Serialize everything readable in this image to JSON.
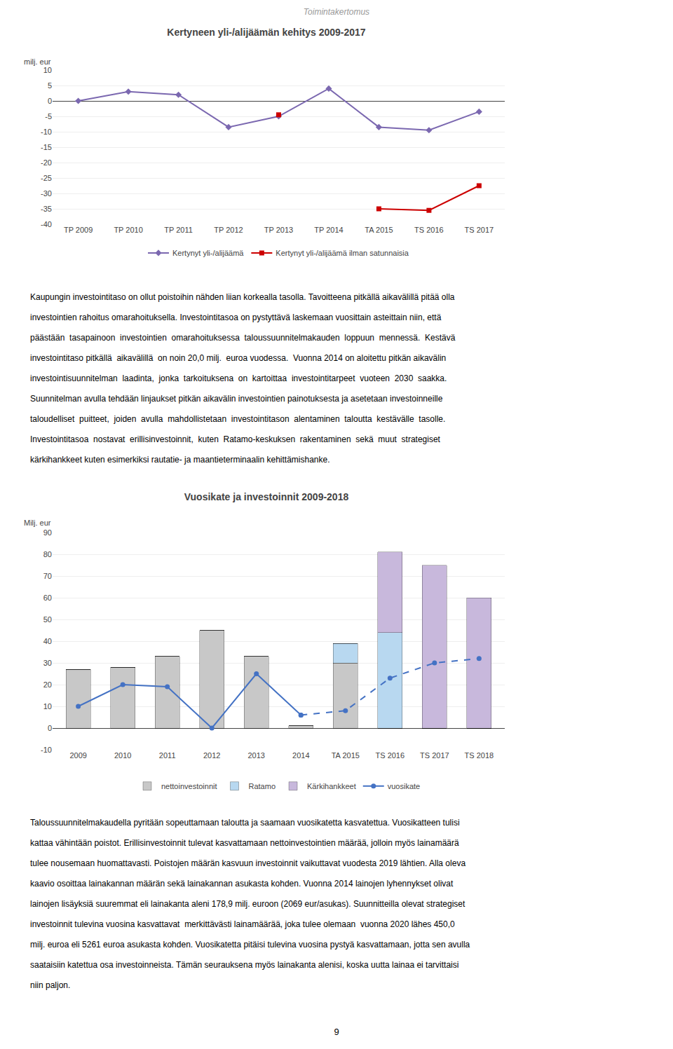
{
  "title": "Toimintakertomus",
  "page_number": "9",
  "text_blocks": [
    [
      "Kaupungin investointitaso on ollut poistoihin nähden liian korkealla tasolla. Tavoitteena pitkällä aikavälillä pitää olla",
      "investointien rahoitus omarahoituksella. Investointitasoa on pystyttävä laskemaan vuosittain asteittain niin, että",
      "päästään  tasapainoon  investointien  omarahoituksessa  taloussuunnitelmakauden  loppuun  mennessä.  Kestävä",
      "investointitaso pitkällä  aikavälillä  on noin 20,0 milj.  euroa vuodessa.  Vuonna 2014 on aloitettu pitkän aikavälin",
      "investointisuunnitelman  laadinta,  jonka  tarkoituksena  on  kartoittaa  investointitarpeet  vuoteen  2030  saakka.",
      "Suunnitelman avulla tehdään linjaukset pitkän aikavälin investointien painotuksesta ja asetetaan investoinneille",
      "taloudelliset  puitteet,  joiden  avulla  mahdollistetaan  investointitason  alentaminen  taloutta  kestävälle  tasolle.",
      "Investointitasoa  nostavat  erillisinvestoinnit,  kuten  Ratamo-keskuksen  rakentaminen  sekä  muut  strategiset",
      "kärkihankkeet kuten esimerkiksi rautatie- ja maantieterminaalin kehittämishanke."
    ],
    [
      "Taloussuunnitelmakaudella pyritään sopeuttamaan taloutta ja saamaan vuosikatetta kasvatettua. Vuosikatteen tulisi",
      "kattaa vähintään poistot. Erillisinvestoinnit tulevat kasvattamaan nettoinvestointien määrää, jolloin myös lainamäärä",
      "tulee nousemaan huomattavasti. Poistojen määrän kasvuun investoinnit vaikuttavat vuodesta 2019 lähtien. Alla oleva",
      "kaavio osoittaa lainakannan määrän sekä lainakannan asukasta kohden. Vuonna 2014 lainojen lyhennykset olivat",
      "lainojen lisäyksiä suuremmat eli lainakanta aleni 178,9 milj. euroon (2069 eur/asukas). Suunnitteilla olevat strategiset",
      "investoinnit tulevina vuosina kasvattavat  merkittävästi lainamäärää, joka tulee olemaan  vuonna 2020 lähes 450,0",
      "milj. euroa eli 5261 euroa asukasta kohden. Vuosikatetta pitäisi tulevina vuosina pystyä kasvattamaan, jotta sen avulla",
      "saataisiin katettua osa investoinneista. Tämän seurauksena myös lainakanta alenisi, koska uutta lainaa ei tarvittaisi",
      "niin paljon."
    ]
  ],
  "chart_data": [
    {
      "type": "line",
      "title": "Kertyneen yli-/alijäämän kehitys 2009-2017",
      "ylabel": "milj. eur",
      "categories": [
        "TP 2009",
        "TP 2010",
        "TP 2011",
        "TP 2012",
        "TP 2013",
        "TP 2014",
        "TA 2015",
        "TS 2016",
        "TS 2017"
      ],
      "series": [
        {
          "name": "Kertynyt yli-/alijäämä",
          "color": "#7B68B0",
          "marker": "diamond",
          "values": [
            0.0,
            3.0,
            2.0,
            -8.5,
            -5.0,
            4.0,
            -8.5,
            -9.5,
            -3.5
          ]
        },
        {
          "name": "Kertynyt yli-/alijäämä ilman satunnaisia",
          "color": "#CC0000",
          "marker": "square",
          "values": [
            null,
            null,
            null,
            null,
            -4.5,
            null,
            -35.0,
            -35.5,
            -27.5
          ]
        }
      ],
      "ylim": [
        -40,
        10
      ],
      "yticks": [
        10,
        5,
        0,
        -5,
        -10,
        -15,
        -20,
        -25,
        -30,
        -35,
        -40
      ],
      "grid": true,
      "legend": "bottom"
    },
    {
      "type": "bar",
      "stacked": true,
      "title": "Vuosikate ja investoinnit 2009-2018",
      "ylabel": "Milj. eur",
      "categories": [
        "2009",
        "2010",
        "2011",
        "2012",
        "2013",
        "2014",
        "TA 2015",
        "TS 2016",
        "TS 2017",
        "TS 2018"
      ],
      "series": [
        {
          "name": "nettoinvestoinnit",
          "type": "bar",
          "color": "#C8C8C8",
          "values": [
            27,
            28,
            33,
            45,
            33,
            1,
            30,
            0,
            0,
            0
          ]
        },
        {
          "name": "Ratamo",
          "type": "bar",
          "color": "#B8D8F0",
          "values": [
            0,
            0,
            0,
            0,
            0,
            0,
            9,
            44,
            0,
            0
          ]
        },
        {
          "name": "Kärkihankkeet",
          "type": "bar",
          "color": "#C8B8DC",
          "values": [
            0,
            0,
            0,
            0,
            0,
            0,
            0,
            37,
            75,
            60
          ]
        },
        {
          "name": "vuosikate",
          "type": "line",
          "color": "#4472C4",
          "marker": "circle",
          "line_style": "solid",
          "values": [
            10,
            20,
            19,
            0,
            25,
            6,
            null,
            null,
            null,
            null
          ]
        },
        {
          "name": "vuosikate",
          "type": "line",
          "color": "#4472C4",
          "marker": "circle",
          "line_style": "dashed",
          "values": [
            null,
            null,
            null,
            null,
            null,
            6,
            8,
            23,
            30,
            32
          ]
        }
      ],
      "ylim": [
        -10,
        90
      ],
      "yticks": [
        90,
        80,
        70,
        60,
        50,
        40,
        30,
        20,
        10,
        0,
        -10
      ],
      "grid": true,
      "legend": "bottom"
    }
  ]
}
